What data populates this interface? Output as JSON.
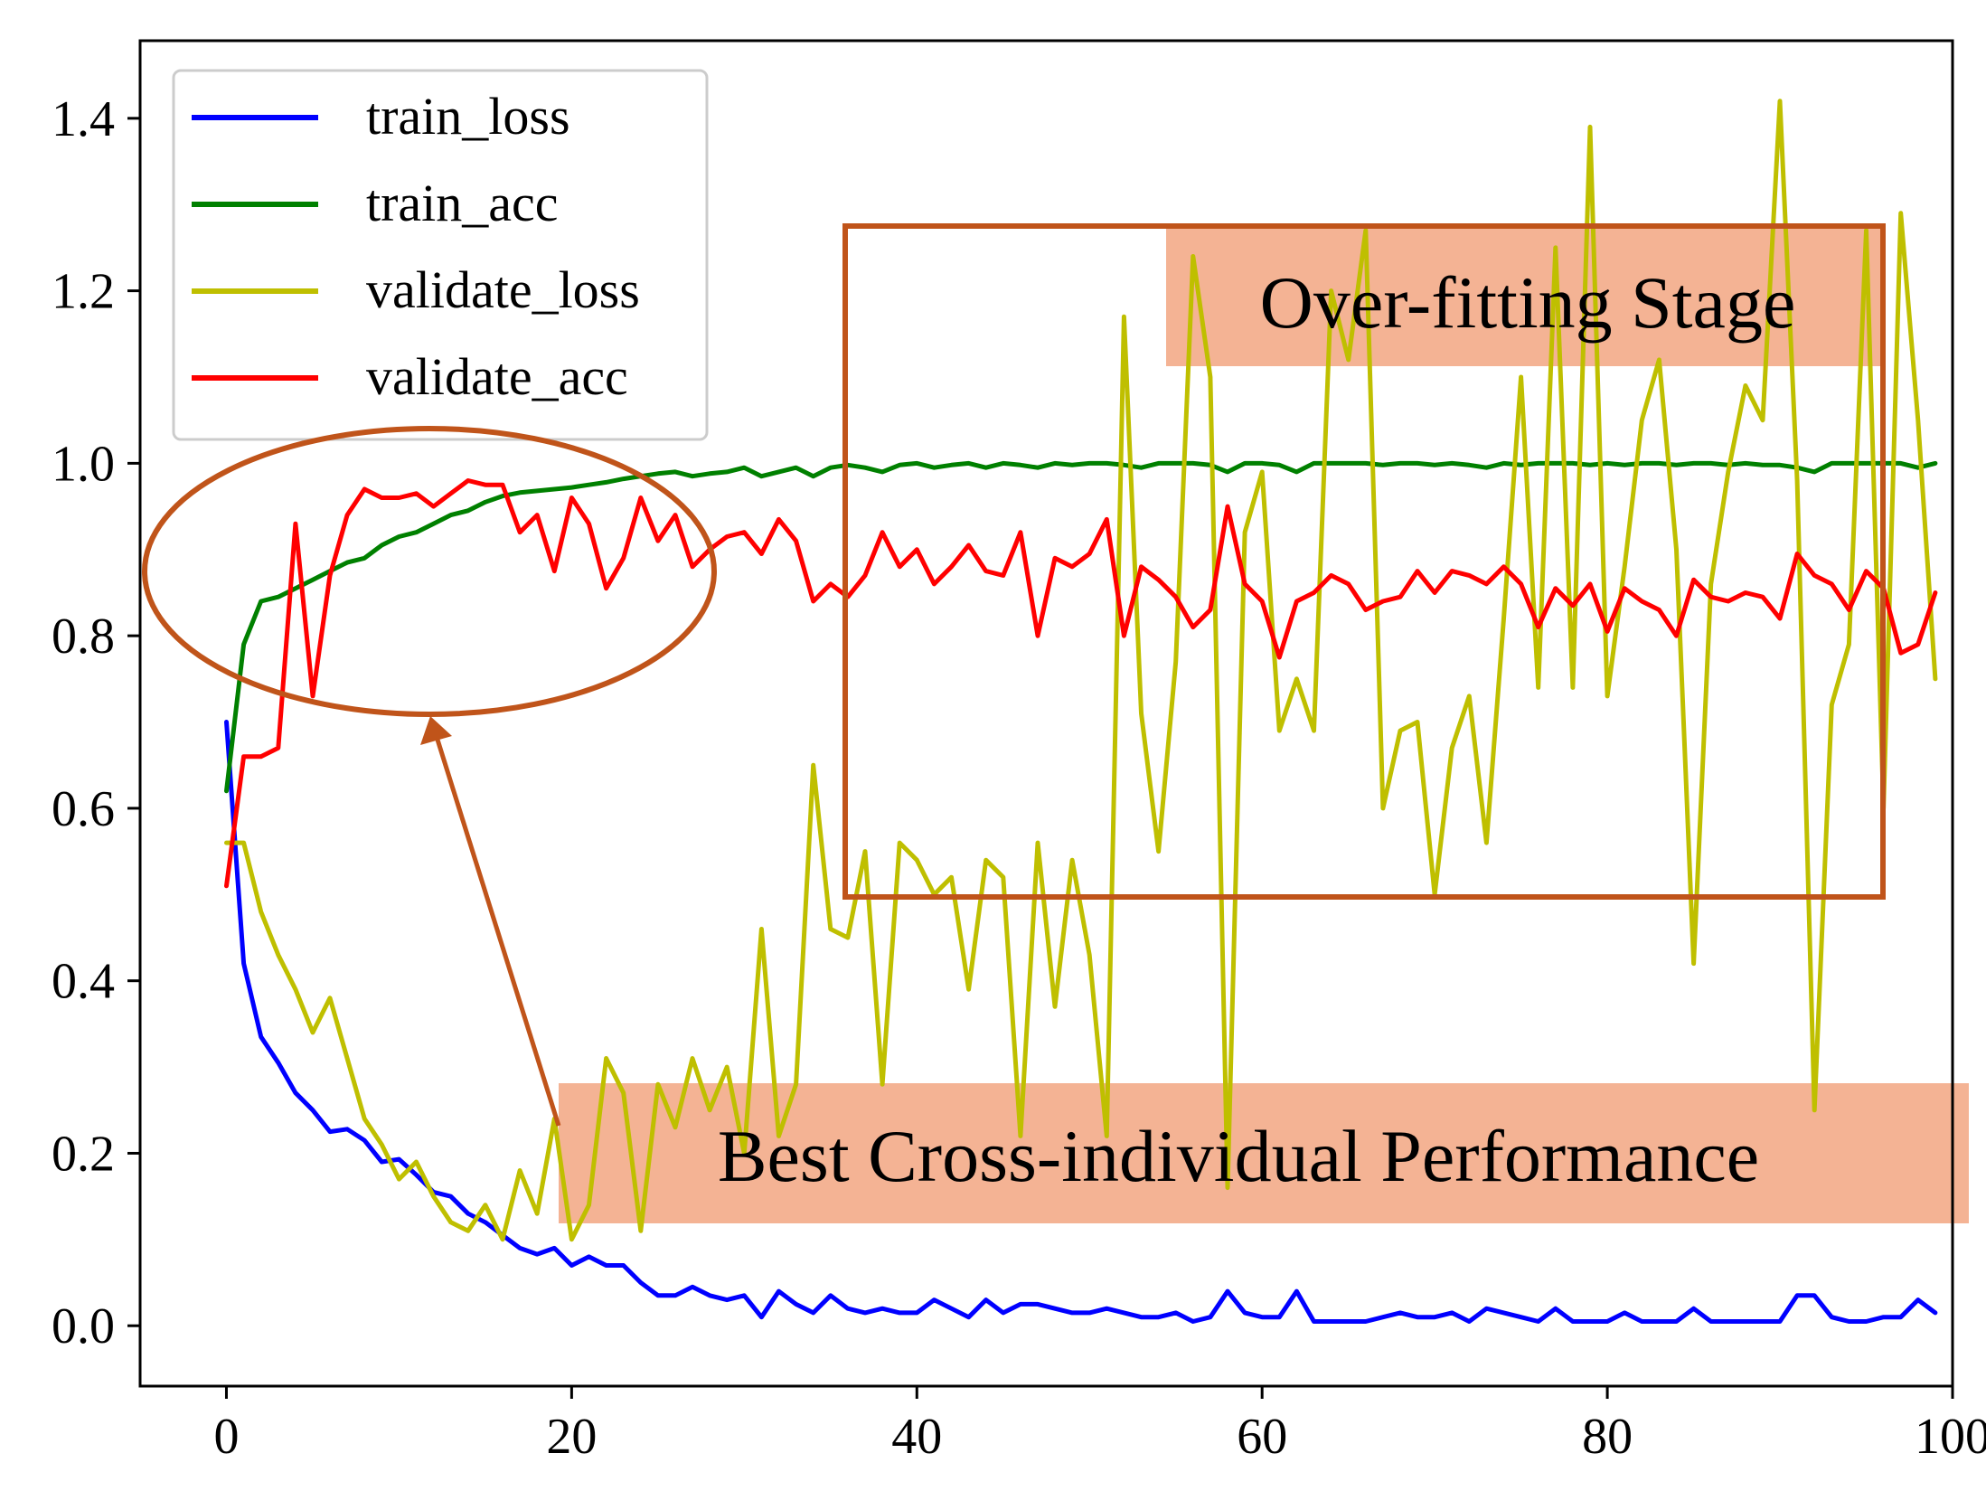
{
  "chart_data": {
    "type": "line",
    "title": "",
    "xlabel": "",
    "ylabel": "",
    "xlim": [
      -5,
      100
    ],
    "ylim": [
      -0.07,
      1.49
    ],
    "xticks": [
      0,
      20,
      40,
      60,
      80,
      100
    ],
    "yticks": [
      0.0,
      0.2,
      0.4,
      0.6,
      0.8,
      1.0,
      1.2,
      1.4
    ],
    "xtick_labels": [
      "0",
      "20",
      "40",
      "60",
      "80",
      "100"
    ],
    "ytick_labels": [
      "0.0",
      "0.2",
      "0.4",
      "0.6",
      "0.8",
      "1.0",
      "1.2",
      "1.4"
    ],
    "legend_position": "top-left",
    "series": [
      {
        "name": "train_loss",
        "color": "#0000ff",
        "values": [
          0.7,
          0.42,
          0.335,
          0.305,
          0.27,
          0.25,
          0.225,
          0.228,
          0.215,
          0.19,
          0.193,
          0.175,
          0.155,
          0.15,
          0.13,
          0.12,
          0.105,
          0.09,
          0.083,
          0.09,
          0.07,
          0.08,
          0.07,
          0.07,
          0.05,
          0.035,
          0.035,
          0.045,
          0.035,
          0.03,
          0.035,
          0.01,
          0.04,
          0.025,
          0.015,
          0.035,
          0.02,
          0.015,
          0.02,
          0.015,
          0.015,
          0.03,
          0.02,
          0.01,
          0.03,
          0.015,
          0.025,
          0.025,
          0.02,
          0.015,
          0.015,
          0.02,
          0.015,
          0.01,
          0.01,
          0.015,
          0.005,
          0.01,
          0.04,
          0.015,
          0.01,
          0.01,
          0.04,
          0.005,
          0.005,
          0.005,
          0.005,
          0.01,
          0.015,
          0.01,
          0.01,
          0.015,
          0.005,
          0.02,
          0.015,
          0.01,
          0.005,
          0.02,
          0.005,
          0.005,
          0.005,
          0.015,
          0.005,
          0.005,
          0.005,
          0.02,
          0.005,
          0.005,
          0.005,
          0.005,
          0.005,
          0.035,
          0.035,
          0.01,
          0.005,
          0.005,
          0.01,
          0.01,
          0.03,
          0.015
        ]
      },
      {
        "name": "train_acc",
        "color": "#008000",
        "values": [
          0.62,
          0.79,
          0.84,
          0.845,
          0.855,
          0.865,
          0.875,
          0.885,
          0.89,
          0.905,
          0.915,
          0.92,
          0.93,
          0.94,
          0.945,
          0.955,
          0.962,
          0.966,
          0.968,
          0.97,
          0.972,
          0.975,
          0.978,
          0.982,
          0.985,
          0.988,
          0.99,
          0.985,
          0.988,
          0.99,
          0.995,
          0.985,
          0.99,
          0.995,
          0.985,
          0.995,
          0.998,
          0.995,
          0.99,
          0.998,
          1.0,
          0.995,
          0.998,
          1.0,
          0.995,
          1.0,
          0.998,
          0.995,
          1.0,
          0.998,
          1.0,
          1.0,
          0.998,
          0.995,
          1.0,
          1.0,
          1.0,
          0.998,
          0.99,
          1.0,
          1.0,
          0.998,
          0.99,
          1.0,
          1.0,
          1.0,
          1.0,
          0.998,
          1.0,
          1.0,
          0.998,
          1.0,
          0.998,
          0.995,
          1.0,
          0.998,
          1.0,
          1.0,
          1.0,
          0.998,
          1.0,
          0.998,
          1.0,
          1.0,
          0.998,
          1.0,
          1.0,
          0.998,
          1.0,
          0.998,
          0.998,
          0.995,
          0.99,
          1.0,
          1.0,
          1.0,
          1.0,
          1.0,
          0.995,
          1.0
        ]
      },
      {
        "name": "validate_loss",
        "color": "#bfbf00",
        "values": [
          0.56,
          0.56,
          0.48,
          0.43,
          0.39,
          0.34,
          0.38,
          0.31,
          0.24,
          0.21,
          0.17,
          0.19,
          0.15,
          0.12,
          0.11,
          0.14,
          0.1,
          0.18,
          0.13,
          0.24,
          0.1,
          0.14,
          0.31,
          0.27,
          0.11,
          0.28,
          0.23,
          0.31,
          0.25,
          0.3,
          0.2,
          0.46,
          0.22,
          0.28,
          0.65,
          0.46,
          0.45,
          0.55,
          0.28,
          0.56,
          0.54,
          0.5,
          0.52,
          0.39,
          0.54,
          0.52,
          0.22,
          0.56,
          0.37,
          0.54,
          0.43,
          0.22,
          1.17,
          0.71,
          0.55,
          0.77,
          1.24,
          1.1,
          0.16,
          0.92,
          0.99,
          0.69,
          0.75,
          0.69,
          1.2,
          1.12,
          1.27,
          0.6,
          0.69,
          0.7,
          0.5,
          0.67,
          0.73,
          0.56,
          0.82,
          1.1,
          0.74,
          1.25,
          0.74,
          1.39,
          0.73,
          0.88,
          1.05,
          1.12,
          0.9,
          0.42,
          0.86,
          0.99,
          1.09,
          1.05,
          1.42,
          0.98,
          0.25,
          0.72,
          0.79,
          1.27,
          0.6,
          1.29,
          1.05,
          0.75
        ]
      },
      {
        "name": "validate_acc",
        "color": "#ff0000",
        "values": [
          0.51,
          0.66,
          0.66,
          0.67,
          0.93,
          0.73,
          0.87,
          0.94,
          0.97,
          0.96,
          0.96,
          0.965,
          0.95,
          0.965,
          0.98,
          0.975,
          0.975,
          0.92,
          0.94,
          0.875,
          0.96,
          0.93,
          0.855,
          0.89,
          0.96,
          0.91,
          0.94,
          0.88,
          0.9,
          0.915,
          0.92,
          0.895,
          0.935,
          0.91,
          0.84,
          0.86,
          0.845,
          0.87,
          0.92,
          0.88,
          0.9,
          0.86,
          0.88,
          0.905,
          0.875,
          0.87,
          0.92,
          0.8,
          0.89,
          0.88,
          0.895,
          0.935,
          0.8,
          0.88,
          0.865,
          0.845,
          0.81,
          0.83,
          0.95,
          0.86,
          0.84,
          0.775,
          0.84,
          0.85,
          0.87,
          0.86,
          0.83,
          0.84,
          0.845,
          0.875,
          0.85,
          0.875,
          0.87,
          0.86,
          0.88,
          0.86,
          0.81,
          0.855,
          0.835,
          0.86,
          0.805,
          0.855,
          0.84,
          0.83,
          0.8,
          0.865,
          0.845,
          0.84,
          0.85,
          0.845,
          0.82,
          0.895,
          0.87,
          0.86,
          0.83,
          0.875,
          0.855,
          0.78,
          0.79,
          0.85
        ]
      }
    ],
    "annotations": [
      {
        "text": "Over-fitting Stage",
        "kind": "box-label"
      },
      {
        "text": "Best Cross-individual Performance",
        "kind": "arrow-label"
      }
    ]
  },
  "colors": {
    "annotation_stroke": "#c0541a",
    "annotation_fill": "#f4b394"
  }
}
